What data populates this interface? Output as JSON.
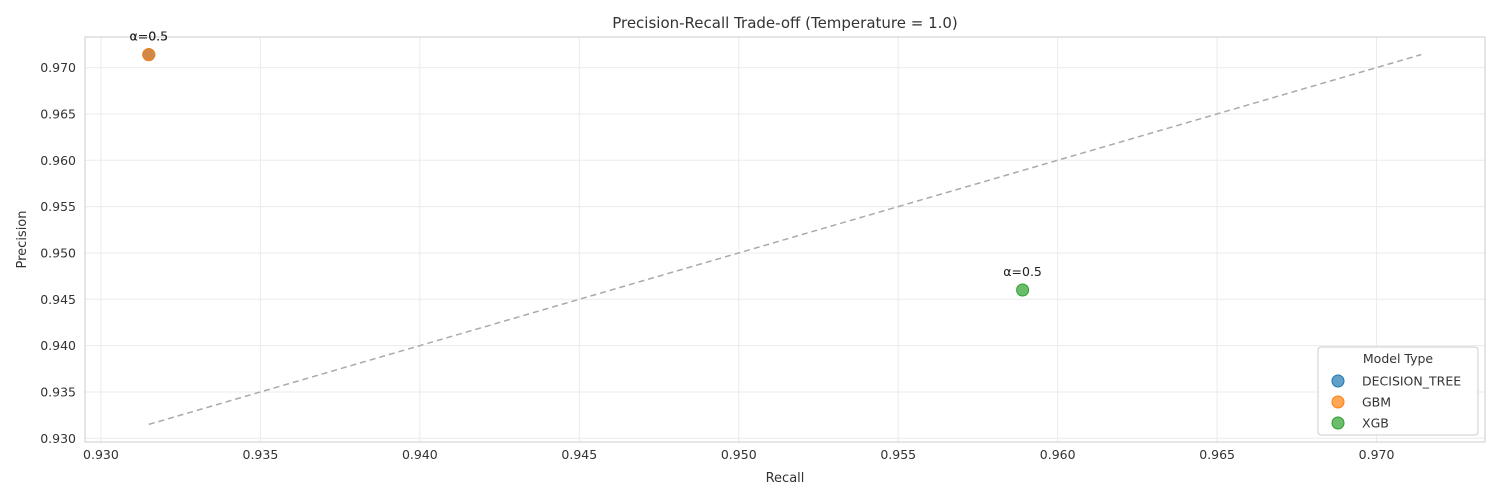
{
  "chart_data": {
    "type": "scatter",
    "title": "Precision-Recall Trade-off (Temperature = 1.0)",
    "xlabel": "Recall",
    "ylabel": "Precision",
    "xlim": [
      0.9295,
      0.9734
    ],
    "ylim": [
      0.9296,
      0.9733
    ],
    "x_ticks": [
      "0.930",
      "0.935",
      "0.940",
      "0.945",
      "0.950",
      "0.955",
      "0.960",
      "0.965",
      "0.970"
    ],
    "y_ticks": [
      "0.930",
      "0.935",
      "0.940",
      "0.945",
      "0.950",
      "0.955",
      "0.960",
      "0.965",
      "0.970"
    ],
    "grid": true,
    "legend": {
      "title": "Model Type",
      "position": "bottom-right"
    },
    "series": [
      {
        "name": "DECISION_TREE",
        "color": "#1f77b4",
        "points": [
          {
            "x": 0.9315,
            "y": 0.9714,
            "label": "α=0.5"
          }
        ]
      },
      {
        "name": "GBM",
        "color": "#ff7f0e",
        "points": [
          {
            "x": 0.9315,
            "y": 0.9714,
            "label": "α=0.5"
          }
        ]
      },
      {
        "name": "XGB",
        "color": "#2ca02c",
        "points": [
          {
            "x": 0.9589,
            "y": 0.946,
            "label": "α=0.5"
          }
        ]
      }
    ],
    "reference_line": {
      "style": "dashed",
      "color": "#aaaaaa",
      "x": [
        0.9315,
        0.9714
      ],
      "y": [
        0.9315,
        0.9714
      ]
    }
  }
}
